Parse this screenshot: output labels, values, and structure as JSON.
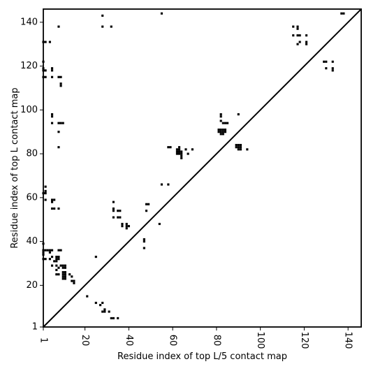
{
  "chart_data": {
    "type": "scatter",
    "xlabel": "Residue index of top L/5 contact map",
    "ylabel": "Residue index of top L contact map",
    "xlim": [
      1,
      146
    ],
    "ylim": [
      1,
      146
    ],
    "x_ticks": [
      1,
      20,
      40,
      60,
      80,
      100,
      120,
      140
    ],
    "y_ticks": [
      1,
      20,
      40,
      60,
      80,
      100,
      120,
      140
    ],
    "diagonal": true,
    "series": [
      {
        "points": [
          [
            21,
            15
          ],
          [
            25,
            12
          ],
          [
            25,
            33
          ],
          [
            27,
            11
          ],
          [
            28,
            12
          ],
          [
            28,
            8
          ],
          [
            29,
            8
          ],
          [
            29,
            9
          ],
          [
            31,
            8
          ],
          [
            32,
            5
          ],
          [
            33,
            5
          ],
          [
            35,
            5
          ],
          [
            13,
            25
          ],
          [
            14,
            22
          ],
          [
            14,
            24
          ],
          [
            15,
            21
          ],
          [
            15,
            22
          ],
          [
            10,
            23
          ],
          [
            10,
            24
          ],
          [
            10,
            25
          ],
          [
            10,
            26
          ],
          [
            11,
            23
          ],
          [
            11,
            24
          ],
          [
            11,
            25
          ],
          [
            11,
            26
          ],
          [
            10,
            28
          ],
          [
            10,
            29
          ],
          [
            11,
            28
          ],
          [
            11,
            29
          ],
          [
            7,
            25
          ],
          [
            8,
            25
          ],
          [
            7,
            27
          ],
          [
            8,
            28
          ],
          [
            9,
            29
          ],
          [
            7,
            29
          ],
          [
            6,
            31
          ],
          [
            7,
            31
          ],
          [
            7,
            32
          ],
          [
            8,
            32
          ],
          [
            8,
            33
          ],
          [
            7,
            33
          ],
          [
            5,
            29
          ],
          [
            2,
            32
          ],
          [
            4,
            32
          ],
          [
            4,
            35
          ],
          [
            4,
            36
          ],
          [
            5,
            36
          ],
          [
            5,
            33
          ],
          [
            8,
            36
          ],
          [
            9,
            36
          ],
          [
            1,
            32
          ],
          [
            1,
            34
          ],
          [
            1,
            35
          ],
          [
            1,
            36
          ],
          [
            1,
            39
          ],
          [
            2,
            36
          ],
          [
            3,
            36
          ],
          [
            1,
            62
          ],
          [
            2,
            62
          ],
          [
            2,
            63
          ],
          [
            2,
            65
          ],
          [
            2,
            59
          ],
          [
            5,
            58
          ],
          [
            5,
            59
          ],
          [
            6,
            59
          ],
          [
            5,
            55
          ],
          [
            6,
            55
          ],
          [
            8,
            55
          ],
          [
            33,
            51
          ],
          [
            33,
            54
          ],
          [
            33,
            55
          ],
          [
            33,
            58
          ],
          [
            35,
            51
          ],
          [
            36,
            51
          ],
          [
            35,
            54
          ],
          [
            36,
            54
          ],
          [
            37,
            47
          ],
          [
            37,
            48
          ],
          [
            39,
            46
          ],
          [
            39,
            47
          ],
          [
            39,
            48
          ],
          [
            40,
            47
          ],
          [
            47,
            37
          ],
          [
            47,
            40
          ],
          [
            47,
            41
          ],
          [
            48,
            54
          ],
          [
            48,
            57
          ],
          [
            49,
            57
          ],
          [
            54,
            48
          ],
          [
            55,
            66
          ],
          [
            58,
            66
          ],
          [
            58,
            83
          ],
          [
            59,
            83
          ],
          [
            62,
            80
          ],
          [
            62,
            81
          ],
          [
            62,
            82
          ],
          [
            63,
            80
          ],
          [
            63,
            81
          ],
          [
            63,
            82
          ],
          [
            63,
            83
          ],
          [
            64,
            78
          ],
          [
            64,
            79
          ],
          [
            64,
            80
          ],
          [
            64,
            81
          ],
          [
            66,
            82
          ],
          [
            67,
            80
          ],
          [
            69,
            82
          ],
          [
            81,
            90
          ],
          [
            81,
            91
          ],
          [
            82,
            89
          ],
          [
            82,
            90
          ],
          [
            82,
            91
          ],
          [
            83,
            89
          ],
          [
            83,
            90
          ],
          [
            83,
            91
          ],
          [
            84,
            90
          ],
          [
            84,
            91
          ],
          [
            82,
            95
          ],
          [
            83,
            94
          ],
          [
            84,
            94
          ],
          [
            82,
            97
          ],
          [
            82,
            98
          ],
          [
            85,
            94
          ],
          [
            89,
            83
          ],
          [
            89,
            84
          ],
          [
            90,
            82
          ],
          [
            90,
            83
          ],
          [
            90,
            84
          ],
          [
            91,
            82
          ],
          [
            91,
            83
          ],
          [
            91,
            84
          ],
          [
            90,
            98
          ],
          [
            94,
            82
          ],
          [
            1,
            115
          ],
          [
            1,
            118
          ],
          [
            1,
            119
          ],
          [
            1,
            122
          ],
          [
            2,
            118
          ],
          [
            2,
            115
          ],
          [
            5,
            115
          ],
          [
            5,
            118
          ],
          [
            5,
            119
          ],
          [
            8,
            115
          ],
          [
            9,
            115
          ],
          [
            9,
            111
          ],
          [
            9,
            112
          ],
          [
            8,
            94
          ],
          [
            9,
            94
          ],
          [
            10,
            94
          ],
          [
            5,
            94
          ],
          [
            5,
            97
          ],
          [
            5,
            98
          ],
          [
            8,
            90
          ],
          [
            8,
            83
          ],
          [
            8,
            138
          ],
          [
            1,
            131
          ],
          [
            2,
            131
          ],
          [
            4,
            131
          ],
          [
            28,
            143
          ],
          [
            28,
            138
          ],
          [
            32,
            138
          ],
          [
            55,
            144
          ],
          [
            115,
            134
          ],
          [
            115,
            138
          ],
          [
            117,
            137
          ],
          [
            117,
            138
          ],
          [
            117,
            134
          ],
          [
            118,
            134
          ],
          [
            117,
            130
          ],
          [
            118,
            131
          ],
          [
            121,
            130
          ],
          [
            121,
            131
          ],
          [
            121,
            134
          ],
          [
            129,
            122
          ],
          [
            130,
            122
          ],
          [
            130,
            119
          ],
          [
            133,
            122
          ],
          [
            133,
            118
          ],
          [
            133,
            119
          ],
          [
            137,
            144
          ],
          [
            138,
            144
          ]
        ]
      }
    ]
  }
}
